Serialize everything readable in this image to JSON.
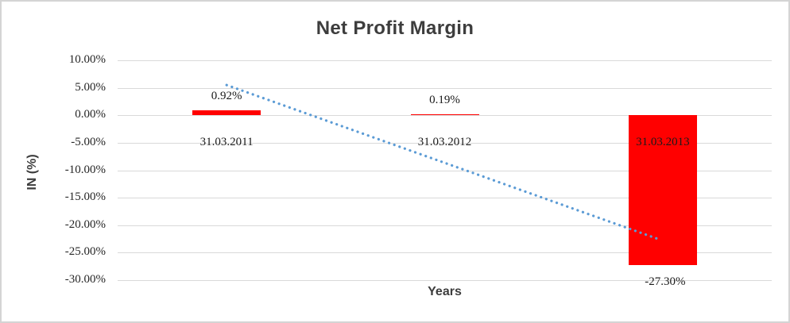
{
  "chart_data": {
    "type": "bar",
    "title": "Net Profit Margin",
    "xlabel": "Years",
    "ylabel": "IN (%)",
    "categories": [
      "31.03.2011",
      "31.03.2012",
      "31.03.2013"
    ],
    "values": [
      0.92,
      0.19,
      -27.3
    ],
    "data_labels": [
      "0.92%",
      "0.19%",
      "-27.30%"
    ],
    "ylim": [
      -30,
      10
    ],
    "ytick_step": 5,
    "ytick_labels": [
      "10.00%",
      "5.00%",
      "0.00%",
      "-5.00%",
      "-10.00%",
      "-15.00%",
      "-20.00%",
      "-25.00%",
      "-30.00%"
    ],
    "grid": true,
    "legend": "none",
    "bar_color": "#FF0000",
    "gridline_color": "#D9D9D9",
    "title_color": "#3D3D3D",
    "tick_label_color": "#262626",
    "trendline": {
      "style": "dotted",
      "color": "#5B9BD5",
      "start_value": 5.5,
      "end_value": -22.6
    }
  }
}
